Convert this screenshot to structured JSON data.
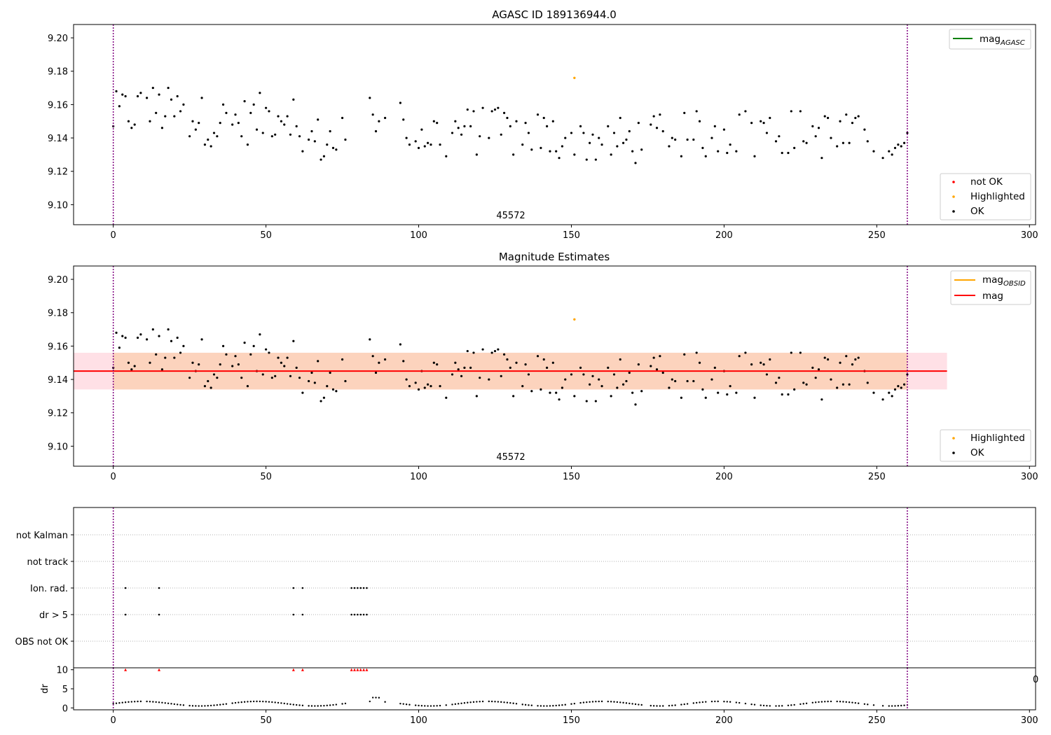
{
  "chart_data": [
    {
      "id": "agasc",
      "type": "scatter",
      "title": "AGASC ID 189136944.0",
      "xlim": [
        -13,
        302
      ],
      "ylim": [
        9.088,
        9.208
      ],
      "xticks": [
        0,
        50,
        100,
        150,
        200,
        250,
        300
      ],
      "yticks": [
        9.1,
        9.12,
        9.14,
        9.16,
        9.18,
        9.2
      ],
      "ytick_labels": [
        "9.10",
        "9.12",
        "9.14",
        "9.16",
        "9.18",
        "9.20"
      ],
      "vlines_x": [
        0,
        260
      ],
      "obsid_label": "45572",
      "legend_lines": [
        {
          "name": "mag",
          "sub": "AGASC",
          "color": "#008000"
        }
      ],
      "legend_points": [
        {
          "name": "not OK",
          "color": "#ff0000"
        },
        {
          "name": "Highlighted",
          "color": "#ffa500"
        },
        {
          "name": "OK",
          "color": "#000000"
        }
      ],
      "highlighted": [
        [
          151,
          9.176
        ]
      ]
    },
    {
      "id": "estimates",
      "type": "scatter",
      "title": "Magnitude Estimates",
      "xlim": [
        -13,
        302
      ],
      "ylim": [
        9.088,
        9.208
      ],
      "xticks": [
        0,
        50,
        100,
        150,
        200,
        250,
        300
      ],
      "yticks": [
        9.1,
        9.12,
        9.14,
        9.16,
        9.18,
        9.2
      ],
      "ytick_labels": [
        "9.10",
        "9.12",
        "9.14",
        "9.16",
        "9.18",
        "9.20"
      ],
      "vlines_x": [
        0,
        260
      ],
      "obsid_label": "45572",
      "mag_line": {
        "value": 9.145,
        "x_range": [
          -13,
          273
        ],
        "band": [
          9.134,
          9.156
        ]
      },
      "legend_lines": [
        {
          "name": "mag",
          "sub": "OBSID",
          "color": "#ffa500"
        },
        {
          "name": "mag",
          "sub": "",
          "color": "#ff0000"
        }
      ],
      "legend_points": [
        {
          "name": "Highlighted",
          "color": "#ffa500"
        },
        {
          "name": "OK",
          "color": "#000000"
        }
      ],
      "highlighted": [
        [
          151,
          9.176
        ]
      ]
    },
    {
      "id": "flags",
      "type": "scatter",
      "xlim": [
        -13,
        302
      ],
      "xticks": [
        0,
        50,
        100,
        150,
        200,
        250,
        300
      ],
      "categories": [
        "not Kalman",
        "not track",
        "Ion. rad.",
        "dr > 5",
        "OBS not OK"
      ],
      "flag_points": {
        "Ion. rad.": [
          4,
          15,
          59,
          62,
          78,
          79,
          80,
          81,
          82,
          83
        ],
        "dr > 5": [
          4,
          15,
          59,
          62,
          78,
          79,
          80,
          81,
          82,
          83
        ]
      },
      "vlines_x": [
        0,
        260
      ]
    },
    {
      "id": "dr",
      "type": "scatter",
      "ylabel": "dr",
      "xlim": [
        -13,
        302
      ],
      "ylim": [
        -0.5,
        10.5
      ],
      "yticks": [
        0,
        5,
        10
      ],
      "xticks": [
        0,
        50,
        100,
        150,
        200,
        250,
        300
      ],
      "clipped_x": [
        4,
        15,
        59,
        62,
        78,
        79,
        80,
        81,
        82,
        83
      ],
      "clip_value": 10,
      "vlines_x": [
        0,
        260
      ],
      "stray_label": "0"
    }
  ],
  "colors": {
    "ok": "#000000",
    "highlighted": "#ffa500",
    "not_ok": "#ff0000",
    "agasc_line": "#008000",
    "mag_line": "#ff0000",
    "band_outer": "#ffe0e6",
    "band_inner": "#fcd3bd",
    "vline": "#800080",
    "grid": "#b0b0b0"
  }
}
